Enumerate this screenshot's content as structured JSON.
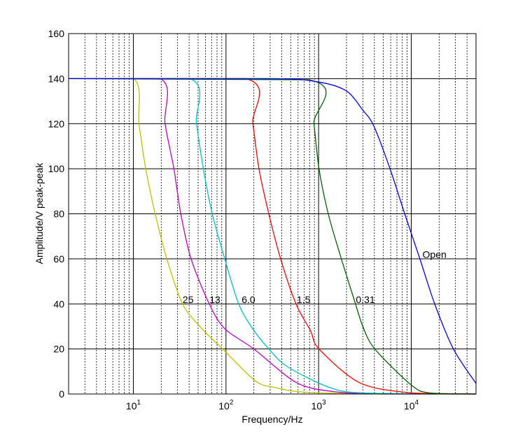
{
  "chart_data": {
    "type": "line",
    "title": "",
    "xlabel": "Frequency/Hz",
    "ylabel": "Amplitude/V peak-peak",
    "xscale": "log",
    "xlim": [
      2,
      50000
    ],
    "ylim": [
      0,
      160
    ],
    "yticks": [
      0,
      20,
      40,
      60,
      80,
      100,
      120,
      140,
      160
    ],
    "xticks": [
      {
        "value": 10,
        "base": "10",
        "exp": "1"
      },
      {
        "value": 100,
        "base": "10",
        "exp": "2"
      },
      {
        "value": 1000,
        "base": "10",
        "exp": "3"
      },
      {
        "value": 10000,
        "base": "10",
        "exp": "4"
      }
    ],
    "grid": {
      "major": "solid",
      "minor_x": "dashed"
    },
    "legend": "none",
    "series": [
      {
        "name": "25",
        "color": "#bfbf00",
        "label_at": [
          39,
          42
        ],
        "points": [
          [
            2,
            140
          ],
          [
            10,
            140
          ],
          [
            11.5,
            120
          ],
          [
            13.6,
            100
          ],
          [
            17.2,
            80
          ],
          [
            23,
            60
          ],
          [
            34,
            40
          ],
          [
            55,
            29
          ],
          [
            92,
            20
          ],
          [
            205,
            6
          ],
          [
            330,
            3
          ],
          [
            1000,
            0.5
          ],
          [
            50000,
            0
          ]
        ]
      },
      {
        "name": "13",
        "color": "#bf00bf",
        "label_at": [
          76,
          42
        ],
        "points": [
          [
            2,
            140
          ],
          [
            19.5,
            140
          ],
          [
            22,
            120
          ],
          [
            27.4,
            100
          ],
          [
            32.5,
            80
          ],
          [
            42,
            60
          ],
          [
            66,
            40
          ],
          [
            97,
            29
          ],
          [
            200,
            20
          ],
          [
            580,
            5
          ],
          [
            1500,
            1
          ],
          [
            5000,
            0
          ],
          [
            50000,
            0
          ]
        ]
      },
      {
        "name": "6.0",
        "color": "#00bfbf",
        "label_at": [
          175,
          42
        ],
        "points": [
          [
            2,
            140
          ],
          [
            40.7,
            140
          ],
          [
            48,
            120
          ],
          [
            57,
            100
          ],
          [
            71,
            80
          ],
          [
            97,
            60
          ],
          [
            137,
            40
          ],
          [
            194,
            29
          ],
          [
            290,
            20
          ],
          [
            465,
            12
          ],
          [
            1300,
            3
          ],
          [
            3000,
            0.5
          ],
          [
            50000,
            0
          ]
        ]
      },
      {
        "name": "1.5",
        "color": "#ff0000",
        "label_at": [
          688,
          42
        ],
        "points": [
          [
            2,
            140
          ],
          [
            163,
            140
          ],
          [
            195,
            120
          ],
          [
            227,
            100
          ],
          [
            290,
            80
          ],
          [
            389,
            60
          ],
          [
            570,
            40
          ],
          [
            820,
            28
          ],
          [
            1010,
            20
          ],
          [
            2780,
            5
          ],
          [
            10000,
            0.5
          ],
          [
            50000,
            0
          ]
        ]
      },
      {
        "name": "0.31",
        "color": "#006400",
        "label_at": [
          3200,
          42
        ],
        "points": [
          [
            2,
            140
          ],
          [
            780,
            139.5
          ],
          [
            890,
            120
          ],
          [
            1010,
            100
          ],
          [
            1270,
            80
          ],
          [
            1760,
            60
          ],
          [
            2500,
            40
          ],
          [
            3000,
            30
          ],
          [
            4040,
            20
          ],
          [
            10000,
            4
          ],
          [
            15700,
            0.5
          ],
          [
            50000,
            0
          ]
        ]
      },
      {
        "name": "Open",
        "color": "#0000ff",
        "label_at": [
          17800,
          62
        ],
        "points": [
          [
            2,
            140
          ],
          [
            300,
            140
          ],
          [
            1000,
            138.5
          ],
          [
            2000,
            134.5
          ],
          [
            3000,
            126
          ],
          [
            3940,
            119
          ],
          [
            5900,
            100
          ],
          [
            8500,
            80
          ],
          [
            12400,
            60
          ],
          [
            17900,
            40
          ],
          [
            28500,
            20
          ],
          [
            50000,
            4.7
          ]
        ]
      }
    ]
  }
}
